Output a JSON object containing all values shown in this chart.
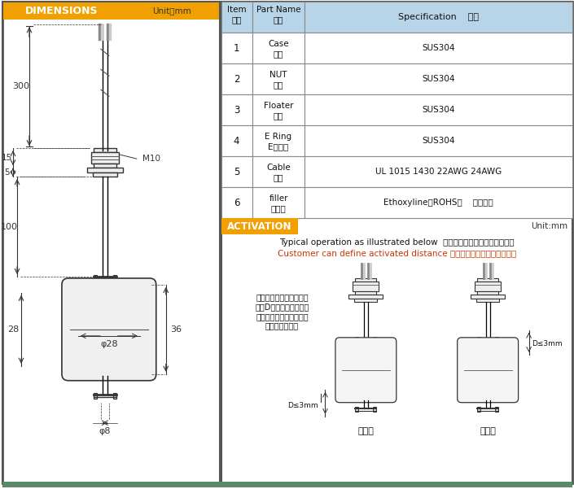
{
  "bg_color": "#ffffff",
  "border_color": "#000000",
  "left_panel_bg": "#ffffff",
  "right_panel_bg": "#ffffff",
  "header_bg": "#f0a000",
  "header_text_color": "#ffffff",
  "table_header_bg": "#b8d4e8",
  "table_border": "#888888",
  "activation_header_bg": "#f0a000",
  "activation_header_text": "#ffffff",
  "dim_text_color": "#333333",
  "red_text_color": "#cc3300",
  "unit_label": "Unit：mm",
  "dimensions_title": "DIMENSIONS",
  "activation_title": "ACTIVATION",
  "activation_unit": "Unit:mm",
  "typical_text": "Typical operation as illustrated below  标准产品的动作距离如下图所示",
  "customer_text": "Customer can define activated distance 可根据客户要求定制动作距离",
  "operation_text": "动作特性：浮球上升或下\n降到D位置时，触点闭合\n，电路为导通状态，其他\n位置为断开状态",
  "d_label1": "D≤3mm",
  "d_label2": "D≤3mm",
  "label_changbi": "常闭型",
  "label_changkai": "常开型",
  "table_items": [
    {
      "item": "1",
      "part_en": "Case",
      "part_cn": "导杆",
      "spec": "SUS304"
    },
    {
      "item": "2",
      "part_en": "NUT",
      "part_cn": "螺母",
      "spec": "SUS304"
    },
    {
      "item": "3",
      "part_en": "Floater",
      "part_cn": "浮球",
      "spec": "SUS304"
    },
    {
      "item": "4",
      "part_en": "E Ring",
      "part_cn": "E形卡环",
      "spec": "SUS304"
    },
    {
      "item": "5",
      "part_en": "Cable",
      "part_cn": "导线",
      "spec": "UL 1015 1430 22AWG 24AWG"
    },
    {
      "item": "6",
      "part_en": "filler",
      "part_cn": "填充物",
      "spec": "Ethoxyline（ROHS）    环氧树脂"
    }
  ],
  "dim_300": "300",
  "dim_15": "15",
  "dim_5": "5",
  "dim_100": "100",
  "dim_28": "28",
  "dim_36": "36",
  "dim_phi28": "φ28",
  "dim_phi8": "φ8",
  "dim_M10": "M10",
  "bottom_bar_color": "#5a8a6a",
  "outer_border": "#555555"
}
